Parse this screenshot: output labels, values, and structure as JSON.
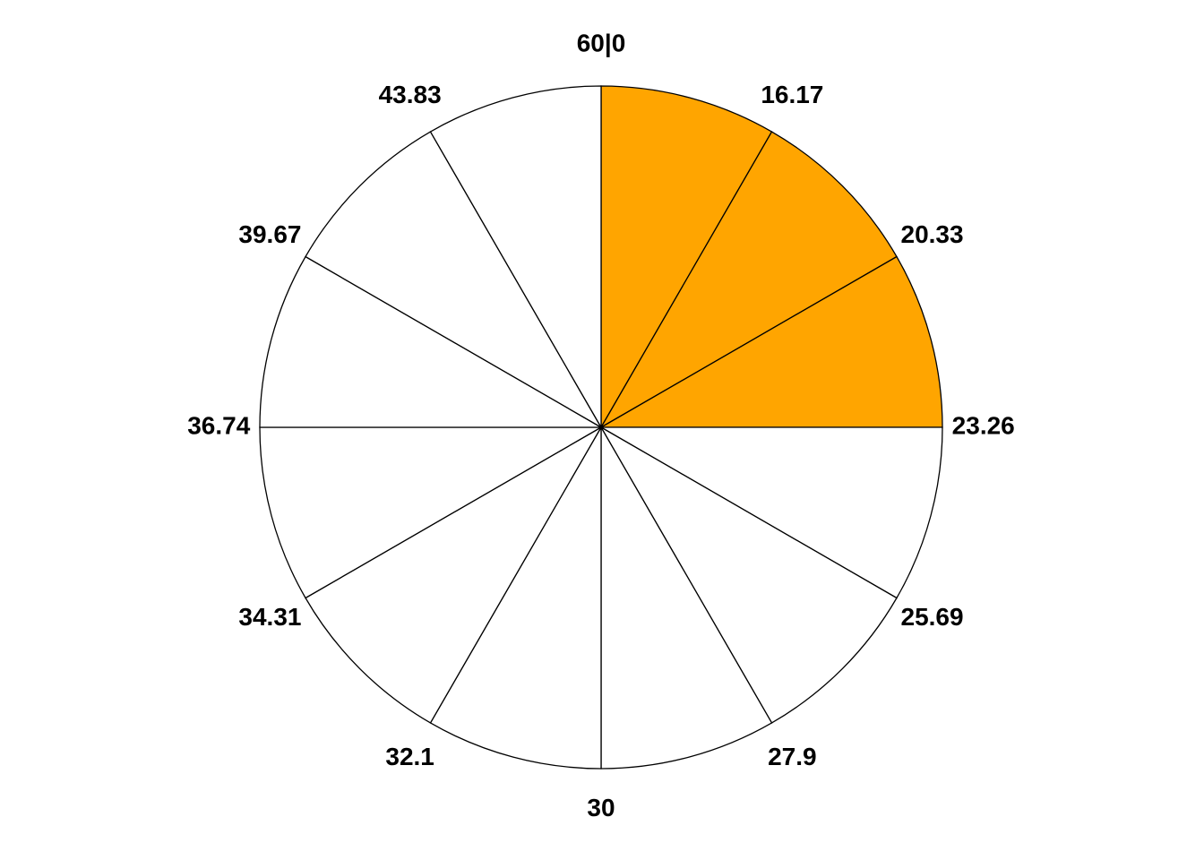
{
  "chart_data": {
    "type": "pie",
    "categories": [
      "60|0",
      "16.17",
      "20.33",
      "23.26",
      "25.69",
      "27.9",
      "30",
      "32.1",
      "34.31",
      "36.74",
      "39.67",
      "43.83"
    ],
    "colors": [
      "#ffa500",
      "#ffa500",
      "#ffa500",
      "#ffffff",
      "#ffffff",
      "#ffffff",
      "#ffffff",
      "#ffffff",
      "#ffffff",
      "#ffffff",
      "#ffffff",
      "#ffffff"
    ]
  }
}
